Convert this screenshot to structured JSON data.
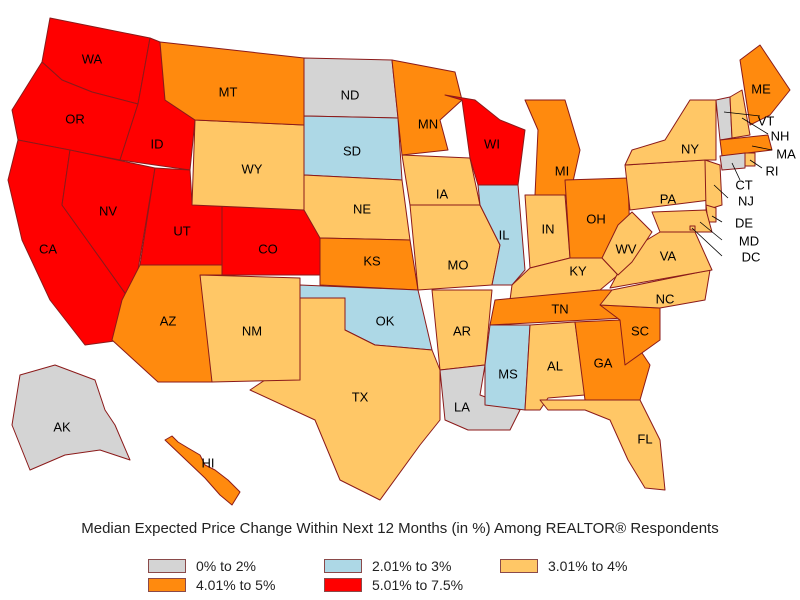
{
  "caption": "Median Expected Price Change Within Next 12 Months (in %) Among REALTOR® Respondents",
  "categories": {
    "c1": {
      "label": "0% to 2%",
      "color": "#d4d4d4"
    },
    "c2": {
      "label": "2.01% to 3%",
      "color": "#add8e6"
    },
    "c3": {
      "label": "3.01% to 4%",
      "color": "#ffc766"
    },
    "c4": {
      "label": "4.01% to 5%",
      "color": "#ff8a0e"
    },
    "c5": {
      "label": "5.01% to 7.5%",
      "color": "#ff0000"
    }
  },
  "legend_order": [
    "c1",
    "c2",
    "c3",
    "c4",
    "c5"
  ],
  "states": [
    {
      "abbr": "WA",
      "cat": "c5"
    },
    {
      "abbr": "OR",
      "cat": "c5"
    },
    {
      "abbr": "CA",
      "cat": "c5"
    },
    {
      "abbr": "ID",
      "cat": "c5"
    },
    {
      "abbr": "NV",
      "cat": "c5"
    },
    {
      "abbr": "UT",
      "cat": "c5"
    },
    {
      "abbr": "CO",
      "cat": "c5"
    },
    {
      "abbr": "WI",
      "cat": "c5"
    },
    {
      "abbr": "MT",
      "cat": "c4"
    },
    {
      "abbr": "AZ",
      "cat": "c4"
    },
    {
      "abbr": "KS",
      "cat": "c4"
    },
    {
      "abbr": "MN",
      "cat": "c4"
    },
    {
      "abbr": "MI",
      "cat": "c4"
    },
    {
      "abbr": "OH",
      "cat": "c4"
    },
    {
      "abbr": "TN",
      "cat": "c4"
    },
    {
      "abbr": "GA",
      "cat": "c4"
    },
    {
      "abbr": "SC",
      "cat": "c4"
    },
    {
      "abbr": "ME",
      "cat": "c4"
    },
    {
      "abbr": "HI",
      "cat": "c4"
    },
    {
      "abbr": "MA",
      "cat": "c4"
    },
    {
      "abbr": "WY",
      "cat": "c3"
    },
    {
      "abbr": "NE",
      "cat": "c3"
    },
    {
      "abbr": "NM",
      "cat": "c3"
    },
    {
      "abbr": "TX",
      "cat": "c3"
    },
    {
      "abbr": "IA",
      "cat": "c3"
    },
    {
      "abbr": "MO",
      "cat": "c3"
    },
    {
      "abbr": "AR",
      "cat": "c3"
    },
    {
      "abbr": "IN",
      "cat": "c3"
    },
    {
      "abbr": "KY",
      "cat": "c3"
    },
    {
      "abbr": "WV",
      "cat": "c3"
    },
    {
      "abbr": "VA",
      "cat": "c3"
    },
    {
      "abbr": "NC",
      "cat": "c3"
    },
    {
      "abbr": "AL",
      "cat": "c3"
    },
    {
      "abbr": "FL",
      "cat": "c3"
    },
    {
      "abbr": "PA",
      "cat": "c3"
    },
    {
      "abbr": "NY",
      "cat": "c3"
    },
    {
      "abbr": "NJ",
      "cat": "c3"
    },
    {
      "abbr": "DE",
      "cat": "c3"
    },
    {
      "abbr": "MD",
      "cat": "c3"
    },
    {
      "abbr": "DC",
      "cat": "c3"
    },
    {
      "abbr": "NH",
      "cat": "c3"
    },
    {
      "abbr": "RI",
      "cat": "c3"
    },
    {
      "abbr": "SD",
      "cat": "c2"
    },
    {
      "abbr": "OK",
      "cat": "c2"
    },
    {
      "abbr": "IL",
      "cat": "c2"
    },
    {
      "abbr": "MS",
      "cat": "c2"
    },
    {
      "abbr": "ND",
      "cat": "c1"
    },
    {
      "abbr": "LA",
      "cat": "c1"
    },
    {
      "abbr": "AK",
      "cat": "c1"
    },
    {
      "abbr": "VT",
      "cat": "c1"
    },
    {
      "abbr": "CT",
      "cat": "c1"
    }
  ]
}
